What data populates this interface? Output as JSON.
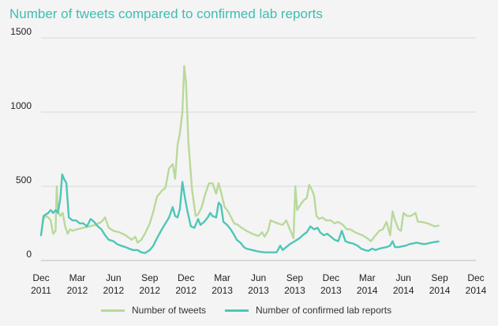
{
  "chart_data": {
    "type": "line",
    "title": "Number of tweets compared to confirmed lab reports",
    "xlabel": "",
    "ylabel": "",
    "ylim": [
      0,
      1500
    ],
    "yticks": [
      "0",
      "500",
      "1000",
      "1500"
    ],
    "xticks": [
      {
        "top": "Dec",
        "bottom": "2011"
      },
      {
        "top": "Mar",
        "bottom": "2012"
      },
      {
        "top": "Jun",
        "bottom": "2012"
      },
      {
        "top": "Sep",
        "bottom": "2012"
      },
      {
        "top": "Dec",
        "bottom": "2012"
      },
      {
        "top": "Mar",
        "bottom": "2013"
      },
      {
        "top": "Jun",
        "bottom": "2013"
      },
      {
        "top": "Sep",
        "bottom": "2013"
      },
      {
        "top": "Dec",
        "bottom": "2013"
      },
      {
        "top": "Mar",
        "bottom": "2014"
      },
      {
        "top": "Jun",
        "bottom": "2014"
      },
      {
        "top": "Sep",
        "bottom": "2014"
      },
      {
        "top": "Dec",
        "bottom": "2014"
      }
    ],
    "xlim": [
      0,
      36
    ],
    "grid": "horizontal",
    "legend_position": "bottom",
    "series": [
      {
        "name": "Number of tweets",
        "color": "#b9d99a",
        "points": [
          [
            0.0,
            170
          ],
          [
            0.2,
            280
          ],
          [
            0.4,
            300
          ],
          [
            0.6,
            290
          ],
          [
            0.8,
            270
          ],
          [
            1.0,
            180
          ],
          [
            1.2,
            200
          ],
          [
            1.3,
            500
          ],
          [
            1.4,
            330
          ],
          [
            1.6,
            300
          ],
          [
            1.8,
            320
          ],
          [
            2.0,
            230
          ],
          [
            2.2,
            180
          ],
          [
            2.4,
            210
          ],
          [
            2.6,
            200
          ],
          [
            3.0,
            210
          ],
          [
            3.5,
            220
          ],
          [
            4.0,
            230
          ],
          [
            4.5,
            240
          ],
          [
            5.0,
            260
          ],
          [
            5.3,
            290
          ],
          [
            5.6,
            220
          ],
          [
            6.0,
            200
          ],
          [
            6.5,
            190
          ],
          [
            7.0,
            170
          ],
          [
            7.5,
            140
          ],
          [
            7.8,
            160
          ],
          [
            8.0,
            120
          ],
          [
            8.3,
            140
          ],
          [
            8.6,
            180
          ],
          [
            9.0,
            250
          ],
          [
            9.3,
            330
          ],
          [
            9.6,
            430
          ],
          [
            10.0,
            470
          ],
          [
            10.3,
            490
          ],
          [
            10.6,
            620
          ],
          [
            10.9,
            650
          ],
          [
            11.1,
            550
          ],
          [
            11.3,
            780
          ],
          [
            11.5,
            860
          ],
          [
            11.7,
            1000
          ],
          [
            11.85,
            1310
          ],
          [
            12.0,
            1200
          ],
          [
            12.2,
            800
          ],
          [
            12.5,
            480
          ],
          [
            12.8,
            300
          ],
          [
            13.0,
            310
          ],
          [
            13.3,
            360
          ],
          [
            13.6,
            450
          ],
          [
            13.9,
            520
          ],
          [
            14.2,
            520
          ],
          [
            14.5,
            450
          ],
          [
            14.7,
            520
          ],
          [
            14.9,
            460
          ],
          [
            15.2,
            360
          ],
          [
            15.5,
            330
          ],
          [
            15.8,
            280
          ],
          [
            16.0,
            250
          ],
          [
            16.3,
            240
          ],
          [
            16.6,
            220
          ],
          [
            17.0,
            200
          ],
          [
            17.5,
            180
          ],
          [
            18.0,
            165
          ],
          [
            18.3,
            190
          ],
          [
            18.5,
            160
          ],
          [
            18.8,
            200
          ],
          [
            19.0,
            270
          ],
          [
            19.3,
            260
          ],
          [
            19.6,
            250
          ],
          [
            20.0,
            240
          ],
          [
            20.3,
            270
          ],
          [
            20.6,
            210
          ],
          [
            20.9,
            150
          ],
          [
            21.05,
            500
          ],
          [
            21.2,
            340
          ],
          [
            21.5,
            380
          ],
          [
            21.8,
            410
          ],
          [
            22.0,
            420
          ],
          [
            22.2,
            510
          ],
          [
            22.4,
            480
          ],
          [
            22.6,
            440
          ],
          [
            22.8,
            300
          ],
          [
            23.0,
            280
          ],
          [
            23.3,
            290
          ],
          [
            23.6,
            270
          ],
          [
            24.0,
            270
          ],
          [
            24.3,
            250
          ],
          [
            24.6,
            260
          ],
          [
            25.0,
            240
          ],
          [
            25.3,
            210
          ],
          [
            25.6,
            210
          ],
          [
            26.0,
            190
          ],
          [
            26.3,
            180
          ],
          [
            26.6,
            170
          ],
          [
            27.0,
            150
          ],
          [
            27.3,
            130
          ],
          [
            27.6,
            160
          ],
          [
            28.0,
            200
          ],
          [
            28.3,
            210
          ],
          [
            28.6,
            260
          ],
          [
            28.9,
            170
          ],
          [
            29.1,
            330
          ],
          [
            29.3,
            270
          ],
          [
            29.6,
            210
          ],
          [
            29.8,
            200
          ],
          [
            30.0,
            320
          ],
          [
            30.3,
            300
          ],
          [
            30.6,
            300
          ],
          [
            31.0,
            320
          ],
          [
            31.2,
            260
          ],
          [
            31.5,
            260
          ],
          [
            32.0,
            250
          ],
          [
            32.3,
            240
          ],
          [
            32.6,
            230
          ],
          [
            32.9,
            235
          ]
        ]
      },
      {
        "name": "Number of confirmed lab reports",
        "color": "#4ec6b8",
        "points": [
          [
            0.0,
            170
          ],
          [
            0.2,
            300
          ],
          [
            0.4,
            310
          ],
          [
            0.6,
            320
          ],
          [
            0.8,
            340
          ],
          [
            1.0,
            320
          ],
          [
            1.2,
            340
          ],
          [
            1.4,
            320
          ],
          [
            1.6,
            420
          ],
          [
            1.75,
            580
          ],
          [
            1.9,
            550
          ],
          [
            2.1,
            520
          ],
          [
            2.3,
            290
          ],
          [
            2.6,
            270
          ],
          [
            2.9,
            270
          ],
          [
            3.2,
            250
          ],
          [
            3.5,
            250
          ],
          [
            3.8,
            230
          ],
          [
            4.1,
            280
          ],
          [
            4.4,
            260
          ],
          [
            4.7,
            230
          ],
          [
            5.0,
            210
          ],
          [
            5.3,
            170
          ],
          [
            5.6,
            140
          ],
          [
            6.0,
            130
          ],
          [
            6.3,
            110
          ],
          [
            6.6,
            100
          ],
          [
            7.0,
            90
          ],
          [
            7.3,
            80
          ],
          [
            7.6,
            70
          ],
          [
            8.0,
            70
          ],
          [
            8.3,
            55
          ],
          [
            8.6,
            50
          ],
          [
            9.0,
            70
          ],
          [
            9.3,
            100
          ],
          [
            9.6,
            150
          ],
          [
            10.0,
            210
          ],
          [
            10.3,
            250
          ],
          [
            10.6,
            290
          ],
          [
            10.9,
            360
          ],
          [
            11.1,
            300
          ],
          [
            11.3,
            290
          ],
          [
            11.5,
            350
          ],
          [
            11.7,
            530
          ],
          [
            11.9,
            430
          ],
          [
            12.1,
            340
          ],
          [
            12.4,
            230
          ],
          [
            12.7,
            220
          ],
          [
            13.0,
            280
          ],
          [
            13.2,
            240
          ],
          [
            13.5,
            260
          ],
          [
            13.8,
            290
          ],
          [
            14.0,
            320
          ],
          [
            14.2,
            300
          ],
          [
            14.5,
            290
          ],
          [
            14.7,
            390
          ],
          [
            14.9,
            370
          ],
          [
            15.1,
            260
          ],
          [
            15.4,
            240
          ],
          [
            15.7,
            210
          ],
          [
            16.0,
            170
          ],
          [
            16.2,
            140
          ],
          [
            16.5,
            120
          ],
          [
            16.8,
            90
          ],
          [
            17.0,
            80
          ],
          [
            17.5,
            70
          ],
          [
            18.0,
            60
          ],
          [
            18.5,
            55
          ],
          [
            19.0,
            55
          ],
          [
            19.5,
            55
          ],
          [
            19.8,
            100
          ],
          [
            20.0,
            70
          ],
          [
            20.3,
            90
          ],
          [
            20.6,
            110
          ],
          [
            21.0,
            130
          ],
          [
            21.4,
            150
          ],
          [
            21.8,
            180
          ],
          [
            22.0,
            190
          ],
          [
            22.3,
            230
          ],
          [
            22.6,
            210
          ],
          [
            22.9,
            220
          ],
          [
            23.1,
            190
          ],
          [
            23.4,
            170
          ],
          [
            23.7,
            180
          ],
          [
            24.0,
            160
          ],
          [
            24.3,
            140
          ],
          [
            24.6,
            130
          ],
          [
            24.9,
            200
          ],
          [
            25.2,
            130
          ],
          [
            25.5,
            120
          ],
          [
            25.8,
            115
          ],
          [
            26.2,
            100
          ],
          [
            26.5,
            80
          ],
          [
            26.8,
            70
          ],
          [
            27.1,
            65
          ],
          [
            27.4,
            80
          ],
          [
            27.7,
            70
          ],
          [
            28.0,
            80
          ],
          [
            28.3,
            85
          ],
          [
            28.6,
            90
          ],
          [
            28.9,
            100
          ],
          [
            29.1,
            130
          ],
          [
            29.3,
            90
          ],
          [
            29.6,
            90
          ],
          [
            29.9,
            95
          ],
          [
            30.2,
            100
          ],
          [
            30.5,
            110
          ],
          [
            30.8,
            115
          ],
          [
            31.1,
            120
          ],
          [
            31.4,
            115
          ],
          [
            31.7,
            110
          ],
          [
            32.0,
            115
          ],
          [
            32.3,
            120
          ],
          [
            32.6,
            125
          ],
          [
            32.9,
            128
          ]
        ]
      }
    ]
  }
}
